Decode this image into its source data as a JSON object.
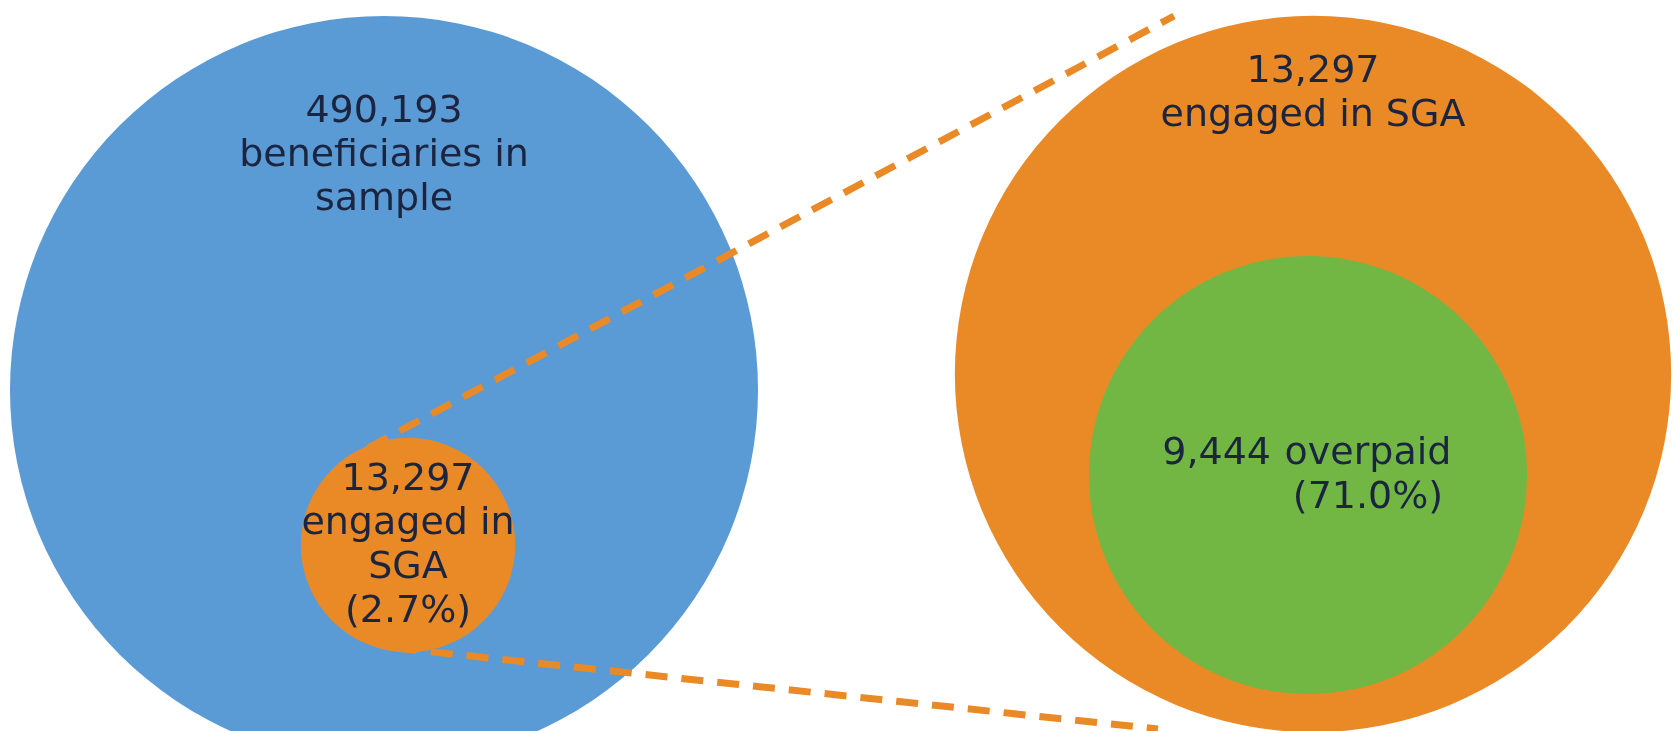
{
  "chart_data": {
    "type": "other",
    "categories": [
      "beneficiaries in\nsample",
      "engaged in\nSGA\n(2.7%)",
      "engaged in SGA",
      "overpaid\n(71.0%)"
    ],
    "values": [
      490193,
      13297,
      13297,
      9444
    ],
    "value_labels": [
      "490,193",
      "13,297",
      "13,297",
      "9,444"
    ],
    "colors": [
      "#5b9bd5",
      "#e98a26",
      "#e98a26",
      "#72b744"
    ]
  }
}
